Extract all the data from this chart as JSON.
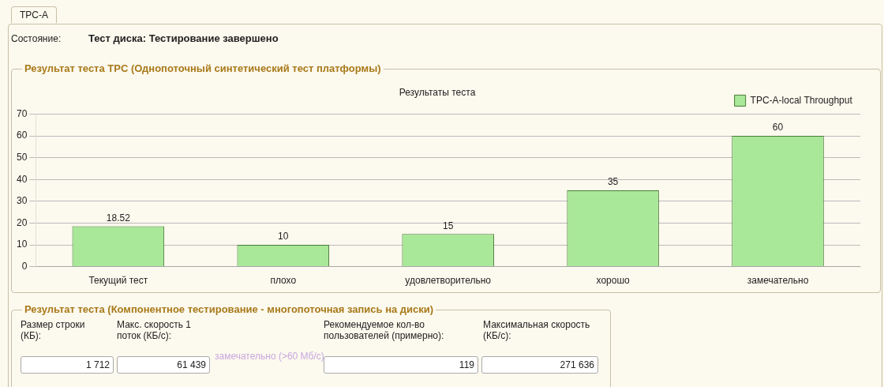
{
  "chart_data": {
    "type": "bar",
    "title": "Результаты теста",
    "categories": [
      "Текущий тест",
      "плохо",
      "удовлетворительно",
      "хорошо",
      "замечательно"
    ],
    "series": [
      {
        "name": "TPC-A-local Throughput",
        "color": "#a8e898",
        "values": [
          18.52,
          10,
          15,
          35,
          60
        ]
      }
    ],
    "ylim": [
      0,
      70
    ],
    "yticks": [
      0,
      10,
      20,
      30,
      40,
      50,
      60,
      70
    ],
    "grid": "y",
    "legend": "top right",
    "data_labels": true,
    "annotations": [
      "TPC-A",
      "Состояние:",
      "Тест диска: Тестирование завершено",
      "Результат теста TPC (Однопоточный синтетический тест платформы)",
      "Результат теста (Компонентное тестирование - многопоточная запись на диски)",
      "Размер строки (КБ):",
      "Макс. скорость 1 поток (КБ/с):",
      "Рекомендуемое кол-во пользователей (примерно):",
      "Максимальная скорость (КБ/с):",
      "1 712",
      "61 439",
      "замечательно (>60 Мб/с)",
      "119",
      "271 636"
    ]
  }
}
